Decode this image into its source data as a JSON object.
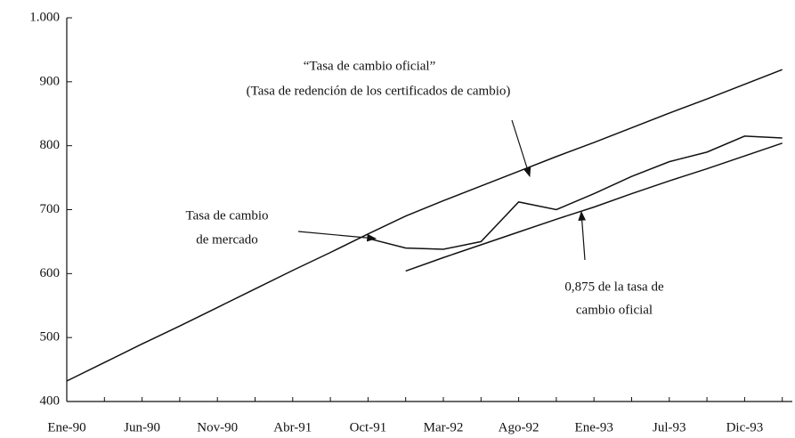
{
  "chart_data": {
    "type": "line",
    "categories": [
      "Ene-90",
      null,
      "Jun-90",
      null,
      "Nov-90",
      null,
      "Abr-91",
      null,
      "Oct-91",
      null,
      "Mar-92",
      null,
      "Ago-92",
      null,
      "Ene-93",
      null,
      "Jul-93",
      null,
      "Dic-93",
      null
    ],
    "series": [
      {
        "color": "#111111",
        "values": [
          432,
          461,
          490,
          518,
          547,
          576,
          605,
          633,
          662,
          690,
          714,
          737,
          760,
          783,
          805,
          828,
          851,
          873,
          896,
          919
        ]
      },
      {
        "color": "#111111",
        "values": [
          null,
          null,
          null,
          null,
          null,
          null,
          null,
          null,
          655,
          640,
          638,
          650,
          712,
          700,
          725,
          752,
          775,
          790,
          815,
          812
        ]
      },
      {
        "color": "#111111",
        "values": [
          null,
          null,
          null,
          null,
          null,
          null,
          null,
          null,
          null,
          604,
          625,
          645,
          665,
          685,
          704,
          725,
          745,
          764,
          784,
          804
        ]
      }
    ],
    "ylim": [
      400,
      1000
    ],
    "yticks": [
      400,
      500,
      600,
      700,
      800,
      900,
      {
        "value": 1000,
        "label": "1.000"
      }
    ],
    "annotations": [
      "“Tasa de cambio oficial”",
      "(Tasa de redención de los certificados de cambio)",
      "Tasa de cambio",
      "de mercado",
      "0,875 de la tasa de",
      "cambio oficial"
    ]
  }
}
